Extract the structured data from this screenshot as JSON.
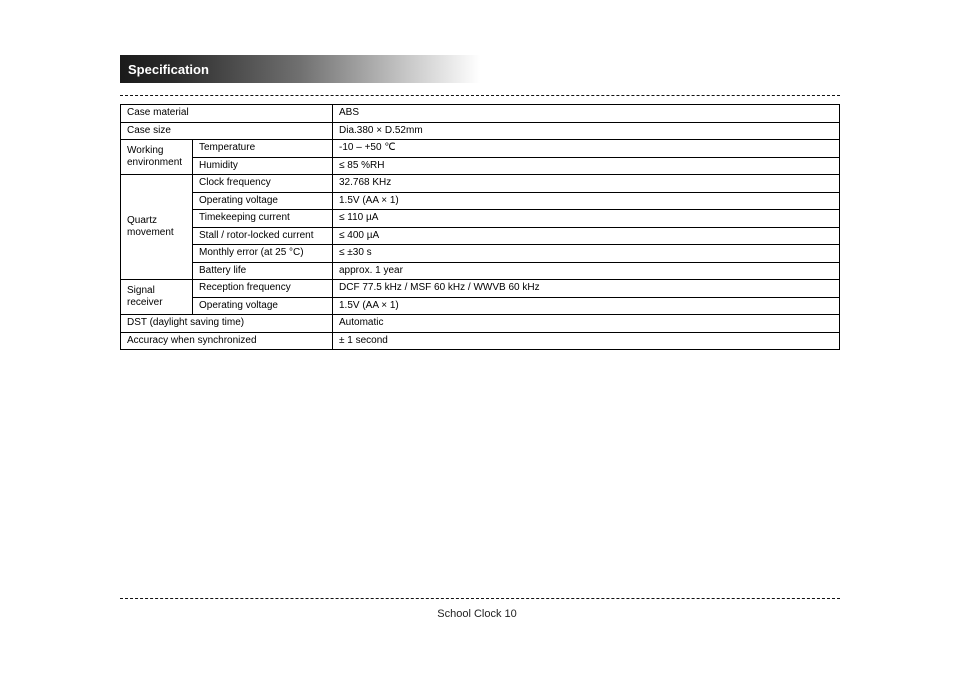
{
  "page": {
    "header_title": "Specification",
    "footer_page": "School Clock 10"
  },
  "spec": {
    "row_case": {
      "label": "Case material",
      "value": "ABS"
    },
    "row_case_size": {
      "label": "Case size",
      "value": "Dia.380 × D.52mm"
    },
    "group_working": {
      "label": "Working environment",
      "temp_label": "Temperature",
      "temp_value": "-10 – +50 ℃",
      "humid_label": "Humidity",
      "humid_value": "≤ 85 %RH"
    },
    "group_quartz": {
      "label": "Quartz movement",
      "rows": {
        "freq": {
          "label": "Clock frequency",
          "value": "32.768 KHz"
        },
        "volt": {
          "label": "Operating voltage",
          "value": "1.5V (AA × 1)"
        },
        "curr_time": {
          "label": "Timekeeping current",
          "value": "≤ 110 µA"
        },
        "curr_stall": {
          "label": "Stall / rotor-locked current",
          "value": "≤ 400 µA"
        },
        "month_err": {
          "label": "Monthly error (at 25 °C)",
          "value": "≤ ±30 s"
        },
        "lifetime": {
          "label": "Battery life",
          "value": "approx. 1 year"
        }
      }
    },
    "group_receiver": {
      "label": "Signal receiver",
      "freq_label": "Reception frequency",
      "freq_value": "DCF 77.5 kHz / MSF 60 kHz / WWVB 60 kHz",
      "volt_label": "Operating voltage",
      "volt_value": "1.5V (AA × 1)"
    },
    "row_dst": {
      "label": "DST (daylight saving time)",
      "value": "Automatic"
    },
    "row_accuracy": {
      "label": "Accuracy when synchronized",
      "value": "± 1 second"
    }
  }
}
